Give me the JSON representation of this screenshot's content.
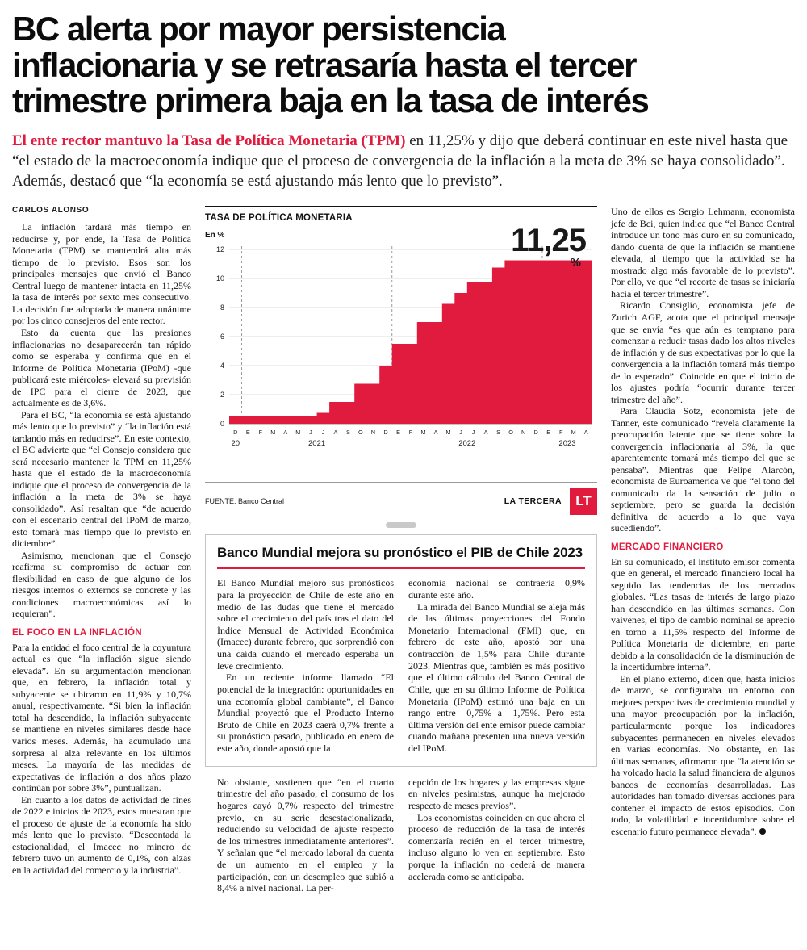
{
  "brand": {
    "accent_red": "#e01b3e"
  },
  "headline": "BC alerta por mayor persistencia\ninflacionaria y se retrasaría hasta el tercer\ntrimestre primera baja en la tasa de interés",
  "lede": {
    "highlight": "El ente rector mantuvo la Tasa de Política Monetaria (TPM)",
    "rest": " en 11,25% y dijo que deberá continuar en este nivel hasta que “el estado de la macroeconomía indique que el proceso de convergencia de la inflación a la meta de 3% se haya consolidado”.  Además, destacó que “la economía se está ajustando más lento que lo previsto”."
  },
  "left": {
    "byline": "CARLOS ALONSO",
    "paragraphs": [
      "—La inflación tardará más tiempo en reducirse y, por ende, la Tasa de Política Monetaria (TPM) se mantendrá alta más tiempo de lo previsto. Esos son los principales mensajes que envió el Banco Central luego de mantener intacta en 11,25% la tasa de interés por sexto mes consecutivo. La decisión fue adoptada de manera unánime por los cinco consejeros del ente rector.",
      "Esto da cuenta que las presiones inflacionarias no desaparecerán tan rápido como se esperaba y confirma que en el Informe de Política Monetaria (IPoM) -que publicará este miércoles- elevará su previsión de IPC para el cierre de 2023, que actualmente es de 3,6%.",
      "Para el BC, “la economía se está ajustando más lento que lo previsto” y “la inflación está tardando más en reducirse”. En este contexto, el BC advierte que “el Consejo considera que será necesario mantener la TPM en 11,25% hasta que el estado de la macroeconomía indique que el proceso de convergencia de la inflación a la meta de 3% se haya consolidado”. Así resaltan que “de acuerdo con el escenario central del IPoM de marzo, esto tomará más tiempo que lo previsto en diciembre”.",
      "Asimismo, mencionan que el Consejo reafirma su compromiso de actuar con flexibilidad en caso de que alguno de los riesgos internos o externos se concrete y las condiciones macroeconómicas así lo requieran”."
    ],
    "subhead": "EL FOCO EN LA INFLACIÓN",
    "paragraphs2": [
      "Para la entidad el foco central de la coyuntura actual es que “la inflación sigue siendo elevada”. En su argumentación mencionan que, en febrero, la inflación total y subyacente se ubicaron en 11,9% y 10,7% anual, respectivamente. “Si bien la inflación total ha descendido, la inflación subyacente se mantiene en niveles similares desde hace varios meses. Además, ha acumulado una sorpresa al alza relevante en los últimos meses. La mayoría de las medidas de expectativas de inflación a dos años plazo continúan por sobre 3%”, puntualizan.",
      "En cuanto a los datos de actividad de fines de 2022 e inicios de 2023, estos muestran que el proceso de ajuste de la economía ha sido más lento que lo previsto. “Descontada la estacionalidad, el Imacec no minero de febrero tuvo un aumento de 0,1%, con alzas en la actividad del comercio y la industria”."
    ]
  },
  "chart_data": {
    "type": "area",
    "title": "TASA DE POLÍTICA MONETARIA",
    "unit_label": "En %",
    "callout": "11,25",
    "callout_suffix": "%",
    "x": [
      "D",
      "E",
      "F",
      "M",
      "A",
      "M",
      "J",
      "J",
      "A",
      "S",
      "O",
      "N",
      "D",
      "E",
      "F",
      "M",
      "A",
      "M",
      "J",
      "J",
      "A",
      "S",
      "O",
      "N",
      "D",
      "E",
      "F",
      "M",
      "A"
    ],
    "values": [
      0.5,
      0.5,
      0.5,
      0.5,
      0.5,
      0.5,
      0.5,
      0.75,
      1.5,
      1.5,
      2.75,
      2.75,
      4.0,
      5.5,
      5.5,
      7.0,
      7.0,
      8.25,
      9.0,
      9.75,
      9.75,
      10.75,
      11.25,
      11.25,
      11.25,
      11.25,
      11.25,
      11.25,
      11.25
    ],
    "ylim": [
      0,
      12
    ],
    "yticks": [
      0,
      2,
      4,
      6,
      8,
      10,
      12
    ],
    "year_separators": [
      1,
      13,
      25
    ],
    "year_ranges": [
      {
        "label": "20",
        "from": 0,
        "to": 0
      },
      {
        "label": "2021",
        "from": 1,
        "to": 12
      },
      {
        "label": "2022",
        "from": 13,
        "to": 24
      },
      {
        "label": "2023",
        "from": 25,
        "to": 28
      }
    ],
    "source": "FUENTE: Banco Central",
    "credit": "LA TERCERA",
    "logo_text": "LT",
    "accent_color": "#e01b3e"
  },
  "box": {
    "title": "Banco Mundial mejora su pronóstico el PIB de Chile 2023",
    "col1": [
      "El Banco Mundial mejoró sus pronósticos para la proyección de Chile de este año en medio de las dudas que tiene el mercado sobre el crecimiento del país tras el dato del Índice Mensual de Actividad Económica (Imacec) durante febrero, que sorprendió con una caída cuando el mercado esperaba un leve crecimiento.",
      "En un reciente informe llamado “El potencial de la integración: oportunidades en una economía global cambiante”, el Banco Mundial proyectó que el Producto Interno Bruto de Chile en 2023 caerá 0,7% frente a su pronóstico pasado, publicado en enero de este año, donde apostó que la"
    ],
    "col2": [
      "economía nacional se contraería 0,9% durante este año.",
      "La mirada del Banco Mundial se aleja más de las últimas proyecciones del Fondo Monetario Internacional (FMI) que, en febrero de este año, apostó por una contracción de 1,5% para Chile durante 2023. Mientras que, también es más positivo que el último cálculo del Banco Central de Chile, que en su último Informe de Política Monetaria (IPoM) estimó una baja en un rango entre –0,75% a –1,75%. Pero esta última versión del ente emisor puede cambiar cuando mañana presenten una nueva versión del IPoM."
    ]
  },
  "continuation": {
    "col1": [
      "No obstante, sostienen que “en el cuarto trimestre del año pasado, el consumo de los hogares cayó 0,7% respecto del trimestre previo, en su serie desestacionalizada, reduciendo su velocidad de ajuste respecto de los trimestres inmediatamente anteriores”. Y señalan que “el mercado laboral da cuenta de un aumento en el empleo y la participación, con un desempleo que subió a 8,4% a nivel nacional. La per-"
    ],
    "col2": [
      "cepción de los hogares y las empresas sigue en niveles pesimistas, aunque ha mejorado respecto de meses previos”.",
      "Los economistas coinciden en que ahora el proceso de reducción de la tasa de interés comenzaría recién en el tercer trimestre, incluso alguno lo ven en septiembre. Esto porque la inflación no cederá de manera acelerada como se anticipaba."
    ]
  },
  "right": {
    "paragraphs": [
      "Uno de ellos es Sergio Lehmann, economista jefe de Bci, quien indica que “el Banco Central introduce un tono más duro en su comunicado, dando cuenta de que la inflación se mantiene elevada, al tiempo que la actividad se ha mostrado algo más favorable de lo previsto”. Por ello, ve que “el recorte de tasas se iniciaría hacia el tercer trimestre”.",
      "Ricardo Consiglio, economista jefe de Zurich AGF, acota que el principal mensaje que se envía “es que aún es temprano para comenzar a reducir tasas dado los altos niveles de inflación y de sus expectativas por lo que la convergencia a la inflación tomará más tiempo de lo esperado”. Coincide en que el inicio de los ajustes podría “ocurrir durante tercer trimestre del año”.",
      "Para Claudia Sotz, economista jefe de Tanner, este comunicado “revela claramente la preocupación latente que se tiene sobre la convergencia inflacionaria al 3%, la que aparentemente tomará más tiempo del que se pensaba”. Mientras que Felipe Alarcón, economista de Euroamerica ve que “el tono del comunicado da la sensación de julio o septiembre, pero se guarda la decisión definitiva de acuerdo a lo que vaya sucediendo”."
    ],
    "subhead": "MERCADO FINANCIERO",
    "paragraphs2": [
      "En su comunicado, el instituto emisor comenta que en general, el mercado financiero local ha seguido las tendencias de los mercados globales. “Las tasas de interés de largo plazo han descendido en las últimas semanas. Con vaivenes, el tipo de cambio nominal se apreció en torno a 11,5% respecto del Informe de Política Monetaria de diciembre, en parte debido a la consolidación de la disminución de la incertidumbre interna”.",
      "En el plano externo, dicen que, hasta inicios de marzo, se configuraba un entorno con mejores perspectivas de crecimiento mundial y una mayor preocupación por la inflación, particularmente porque los indicadores subyacentes permanecen en niveles elevados en varias economías. No obstante, en las últimas semanas, afirmaron que “la atención se ha volcado hacia la salud financiera de algunos bancos de economías desarrolladas. Las autoridades han tomado diversas acciones para contener el impacto de estos episodios. Con todo, la volatilidad e incertidumbre sobre el escenario futuro permanece elevada”."
    ]
  }
}
